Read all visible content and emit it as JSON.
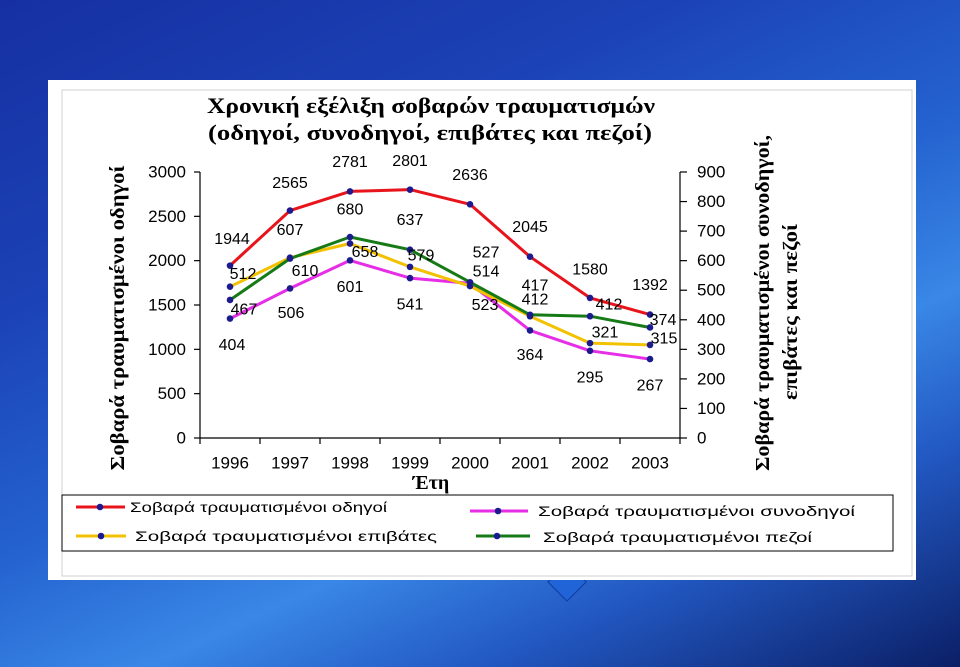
{
  "chart_data": {
    "type": "line",
    "title": "Χρονική εξέλιξη σοβαρών τραυματισμών",
    "subtitle": "(οδηγοί, συνοδηγοί, επιβάτες και πεζοί)",
    "xlabel": "Έτη",
    "ylabel": "Σοβαρά τραυματισμένοι οδηγοί",
    "y2label": [
      "Σοβαρά τραυματισμένοι συνοδηγοί,",
      "επιβάτες και πεζοί"
    ],
    "categories": [
      "1996",
      "1997",
      "1998",
      "1999",
      "2000",
      "2001",
      "2002",
      "2003"
    ],
    "ylim": [
      0,
      3000
    ],
    "y2lim": [
      0,
      900
    ],
    "yticks": [
      0,
      500,
      1000,
      1500,
      2000,
      2500,
      3000
    ],
    "y2ticks": [
      0,
      100,
      200,
      300,
      400,
      500,
      600,
      700,
      800,
      900
    ],
    "grid": false,
    "legend_position": "bottom",
    "marker_color": "#1b1b8f",
    "series": [
      {
        "name": "Σοβαρά τραυματισμένοι οδηγοί",
        "axis": "left",
        "color": "#e8141c",
        "values": [
          1944,
          2565,
          2781,
          2801,
          2636,
          2045,
          1580,
          1392
        ]
      },
      {
        "name": "Σοβαρά τραυματισμένοι συνοδηγοί",
        "axis": "right",
        "color": "#e62ee6",
        "values": [
          404,
          506,
          601,
          541,
          523,
          364,
          295,
          267
        ]
      },
      {
        "name": "Σοβαρά τραυματισμένοι επιβάτες",
        "axis": "right",
        "color": "#f2c200",
        "values": [
          512,
          610,
          658,
          579,
          514,
          412,
          321,
          315
        ]
      },
      {
        "name": "Σοβαρά τραυματισμένοι πεζοί",
        "axis": "right",
        "color": "#167a16",
        "values": [
          467,
          607,
          680,
          637,
          527,
          417,
          412,
          374
        ]
      }
    ]
  }
}
